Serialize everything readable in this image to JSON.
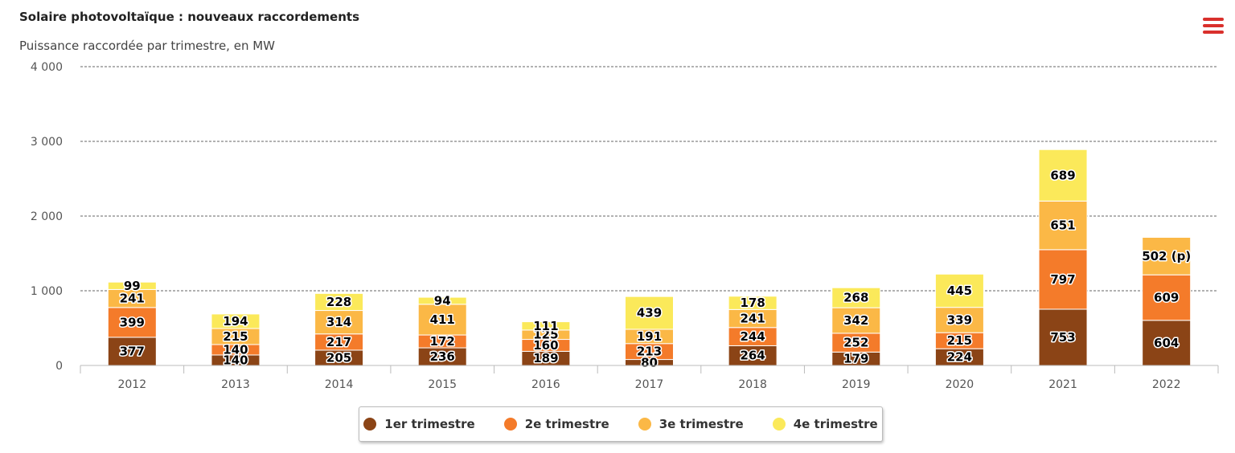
{
  "header": {
    "title": "Solaire photovoltaïque : nouveaux raccordements",
    "subtitle": "Puissance raccordée par trimestre, en MW",
    "menu_icon": "hamburger-menu-icon"
  },
  "colors": {
    "accent": "#d9302c",
    "series": [
      "#8b4416",
      "#f47b2a",
      "#fbb846",
      "#fbe95a"
    ]
  },
  "chart_data": {
    "type": "bar",
    "stacked": true,
    "categories": [
      "2012",
      "2013",
      "2014",
      "2015",
      "2016",
      "2017",
      "2018",
      "2019",
      "2020",
      "2021",
      "2022"
    ],
    "series": [
      {
        "name": "1er trimestre",
        "values": [
          377,
          140,
          205,
          236,
          189,
          80,
          264,
          179,
          224,
          753,
          604
        ],
        "labels": [
          "377",
          "140",
          "205",
          "236",
          "189",
          "80",
          "264",
          "179",
          "224",
          "753",
          "604"
        ]
      },
      {
        "name": "2e trimestre",
        "values": [
          399,
          140,
          217,
          172,
          160,
          213,
          244,
          252,
          215,
          797,
          609
        ],
        "labels": [
          "399",
          "140",
          "217",
          "172",
          "160",
          "213",
          "244",
          "252",
          "215",
          "797",
          "609"
        ]
      },
      {
        "name": "3e trimestre",
        "values": [
          241,
          215,
          314,
          411,
          125,
          191,
          241,
          342,
          339,
          651,
          502
        ],
        "labels": [
          "241",
          "215",
          "314",
          "411",
          "125",
          "191",
          "241",
          "342",
          "339",
          "651",
          "502 (p)"
        ]
      },
      {
        "name": "4e trimestre",
        "values": [
          99,
          194,
          228,
          94,
          111,
          439,
          178,
          268,
          445,
          689,
          null
        ],
        "labels": [
          "99",
          "194",
          "228",
          "94",
          "111",
          "439",
          "178",
          "268",
          "445",
          "689",
          ""
        ]
      }
    ],
    "yticks": [
      "0",
      "1 000",
      "2 000",
      "3 000",
      "4 000"
    ],
    "ylim": [
      0,
      4000
    ],
    "grid": true,
    "legend_position": "bottom-center"
  }
}
